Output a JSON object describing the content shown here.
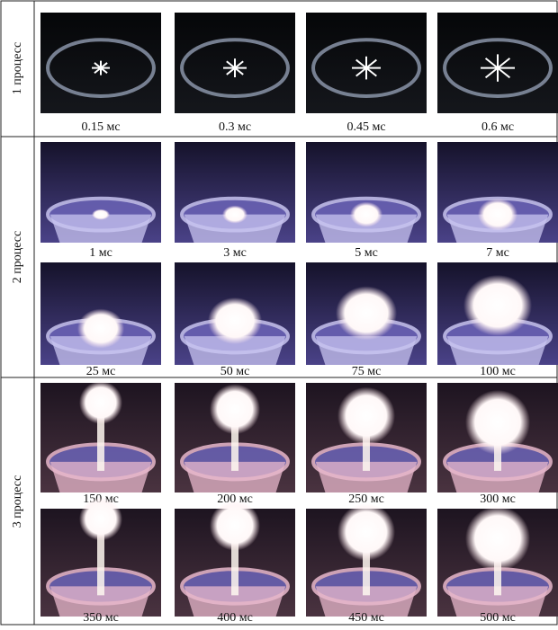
{
  "figure": {
    "rows": [
      {
        "label": "1 процесс",
        "captions": [
          "0.15 мс",
          "0.3 мс",
          "0.45 мс",
          "0.6 мс"
        ]
      },
      {
        "label": "2 процесс",
        "captions": [
          "1 мс",
          "3 мс",
          "5 мс",
          "7 мс",
          "25 мс",
          "50 мс",
          "75 мс",
          "100 мс"
        ]
      },
      {
        "label": "3 процесс",
        "captions": [
          "150 мс",
          "200 мс",
          "250 мс",
          "300 мс",
          "350 мс",
          "400 мс",
          "450 мс",
          "500 мс"
        ]
      }
    ]
  }
}
